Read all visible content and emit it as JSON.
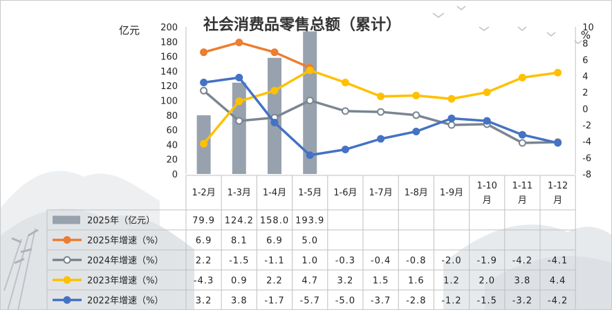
{
  "chart_data": {
    "type": "bar",
    "title": "社会消费品零售总额（累计）",
    "left_axis_unit": "亿元",
    "right_axis_unit": "%",
    "left_ylim": [
      0,
      200
    ],
    "left_ticks": [
      "0",
      "20",
      "40",
      "60",
      "80",
      "100",
      "120",
      "140",
      "160",
      "180",
      "200"
    ],
    "right_ylim": [
      -8,
      10
    ],
    "right_ticks": [
      "-8",
      "-6",
      "-4",
      "-2",
      "0",
      "2",
      "4",
      "6",
      "8",
      "10"
    ],
    "categories": [
      "1-2月",
      "1-3月",
      "1-4月",
      "1-5月",
      "1-6月",
      "1-7月",
      "1-8月",
      "1-9月",
      "1-10月",
      "1-11月",
      "1-12月"
    ],
    "series": [
      {
        "name": "2025年（亿元）",
        "kind": "bar",
        "axis": "left",
        "color": "#98a2ae",
        "values": [
          79.9,
          124.2,
          158.0,
          193.9,
          null,
          null,
          null,
          null,
          null,
          null,
          null
        ],
        "labels": [
          "79.9",
          "124.2",
          "158.0",
          "193.9",
          "",
          "",
          "",
          "",
          "",
          "",
          ""
        ]
      },
      {
        "name": "2025年增速（%）",
        "kind": "line",
        "axis": "right",
        "color": "#ed7d31",
        "marker": "filled",
        "values": [
          6.9,
          8.1,
          6.9,
          5.0,
          null,
          null,
          null,
          null,
          null,
          null,
          null
        ],
        "labels": [
          "6.9",
          "8.1",
          "6.9",
          "5.0",
          "",
          "",
          "",
          "",
          "",
          "",
          ""
        ]
      },
      {
        "name": "2024年增速（%）",
        "kind": "line",
        "axis": "right",
        "color": "#7a8590",
        "marker": "hollow",
        "values": [
          2.2,
          -1.5,
          -1.1,
          1.0,
          -0.3,
          -0.4,
          -0.8,
          -2.0,
          -1.9,
          -4.2,
          -4.1
        ],
        "labels": [
          "2.2",
          "-1.5",
          "-1.1",
          "1.0",
          "-0.3",
          "-0.4",
          "-0.8",
          "-2.0",
          "-1.9",
          "-4.2",
          "-4.1"
        ]
      },
      {
        "name": "2023年增速（%）",
        "kind": "line",
        "axis": "right",
        "color": "#ffc000",
        "marker": "filled",
        "values": [
          -4.3,
          0.9,
          2.2,
          4.7,
          3.2,
          1.5,
          1.6,
          1.2,
          2.0,
          3.8,
          4.4
        ],
        "labels": [
          "-4.3",
          "0.9",
          "2.2",
          "4.7",
          "3.2",
          "1.5",
          "1.6",
          "1.2",
          "2.0",
          "3.8",
          "4.4"
        ]
      },
      {
        "name": "2022年增速（%）",
        "kind": "line",
        "axis": "right",
        "color": "#4472c4",
        "marker": "filled",
        "values": [
          3.2,
          3.8,
          -1.7,
          -5.7,
          -5.0,
          -3.7,
          -2.8,
          -1.2,
          -1.5,
          -3.2,
          -4.2
        ],
        "labels": [
          "3.2",
          "3.8",
          "-1.7",
          "-5.7",
          "-5.0",
          "-3.7",
          "-2.8",
          "-1.2",
          "-1.5",
          "-3.2",
          "-4.2"
        ]
      }
    ],
    "grid": false,
    "legend": "table-below"
  }
}
